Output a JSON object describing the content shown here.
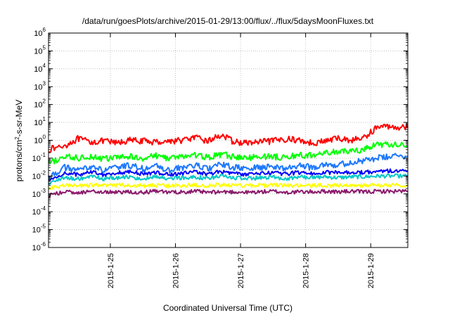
{
  "chart_data": {
    "type": "line",
    "title": "/data/run/goesPlots/archive/2015-01-29/13:00/flux/../flux/5daysMoonFluxes.txt",
    "xlabel": "Coordinated Universal Time (UTC)",
    "ylabel": {
      "base": "protons/cm",
      "sup": "2",
      "rest": "-s-sr-MeV"
    },
    "yscale": "log",
    "ylim_exp": [
      -6,
      6
    ],
    "y_tick_labels": [
      {
        "exp": -6,
        "base": "10",
        "sup": "-6"
      },
      {
        "exp": -5,
        "base": "10",
        "sup": "-5"
      },
      {
        "exp": -4,
        "base": "10",
        "sup": "-4"
      },
      {
        "exp": -3,
        "base": "10",
        "sup": "-3"
      },
      {
        "exp": -2,
        "base": "10",
        "sup": "-2"
      },
      {
        "exp": -1,
        "base": "10",
        "sup": "-1"
      },
      {
        "exp": 0,
        "base": "10",
        "sup": "0"
      },
      {
        "exp": 1,
        "base": "10",
        "sup": "1"
      },
      {
        "exp": 2,
        "base": "10",
        "sup": "2"
      },
      {
        "exp": 3,
        "base": "10",
        "sup": "3"
      },
      {
        "exp": 4,
        "base": "10",
        "sup": "4"
      },
      {
        "exp": 5,
        "base": "10",
        "sup": "5"
      },
      {
        "exp": 6,
        "base": "10",
        "sup": "6"
      }
    ],
    "xlim_days": [
      24.05,
      29.57
    ],
    "x_ticks": [
      {
        "day": 25,
        "label": "2015-1-25"
      },
      {
        "day": 26,
        "label": "2015-1-26"
      },
      {
        "day": 27,
        "label": "2015-1-27"
      },
      {
        "day": 28,
        "label": "2015-1-28"
      },
      {
        "day": 29,
        "label": "2015-1-29"
      }
    ],
    "grid": true,
    "legend": "none",
    "series": [
      {
        "color": "#ff0000",
        "x": [
          24.05,
          24.3,
          24.5,
          24.7,
          24.9,
          25.1,
          25.3,
          25.5,
          25.7,
          25.9,
          26.1,
          26.3,
          26.5,
          26.7,
          26.9,
          27.1,
          27.3,
          27.5,
          27.7,
          27.9,
          28.1,
          28.3,
          28.5,
          28.7,
          28.9,
          29.1,
          29.3,
          29.57
        ],
        "values": [
          0.3,
          0.5,
          1.2,
          0.8,
          0.9,
          0.7,
          1.0,
          0.9,
          0.8,
          0.9,
          1.0,
          1.4,
          0.9,
          2.0,
          0.8,
          0.7,
          0.8,
          0.9,
          1.2,
          1.0,
          0.7,
          0.9,
          1.3,
          1.0,
          1.4,
          5.5,
          6.0,
          5.0
        ]
      },
      {
        "color": "#00ff00",
        "x": [
          24.05,
          24.3,
          24.5,
          24.7,
          24.9,
          25.1,
          25.3,
          25.5,
          25.7,
          25.9,
          26.1,
          26.3,
          26.5,
          26.7,
          26.9,
          27.1,
          27.3,
          27.5,
          27.7,
          27.9,
          28.1,
          28.3,
          28.5,
          28.7,
          28.9,
          29.1,
          29.3,
          29.57
        ],
        "values": [
          0.05,
          0.12,
          0.1,
          0.13,
          0.09,
          0.11,
          0.12,
          0.1,
          0.14,
          0.1,
          0.12,
          0.15,
          0.11,
          0.16,
          0.12,
          0.1,
          0.13,
          0.12,
          0.11,
          0.15,
          0.14,
          0.2,
          0.22,
          0.25,
          0.3,
          0.6,
          0.55,
          0.5
        ]
      },
      {
        "color": "#1e78ff",
        "x": [
          24.05,
          24.3,
          24.5,
          24.7,
          24.9,
          25.1,
          25.3,
          25.5,
          25.7,
          25.9,
          26.1,
          26.3,
          26.5,
          26.7,
          26.9,
          27.1,
          27.3,
          27.5,
          27.7,
          27.9,
          28.1,
          28.3,
          28.5,
          28.7,
          28.9,
          29.1,
          29.3,
          29.57
        ],
        "values": [
          0.008,
          0.03,
          0.02,
          0.035,
          0.02,
          0.03,
          0.04,
          0.025,
          0.035,
          0.02,
          0.03,
          0.04,
          0.025,
          0.045,
          0.03,
          0.025,
          0.03,
          0.035,
          0.025,
          0.04,
          0.03,
          0.05,
          0.04,
          0.06,
          0.07,
          0.1,
          0.12,
          0.13
        ]
      },
      {
        "color": "#0000ff",
        "x": [
          24.05,
          24.3,
          24.5,
          24.7,
          24.9,
          25.1,
          25.3,
          25.5,
          25.7,
          25.9,
          26.1,
          26.3,
          26.5,
          26.7,
          26.9,
          27.1,
          27.3,
          27.5,
          27.7,
          27.9,
          28.1,
          28.3,
          28.5,
          28.7,
          28.9,
          29.1,
          29.3,
          29.57
        ],
        "values": [
          0.005,
          0.015,
          0.012,
          0.018,
          0.012,
          0.015,
          0.017,
          0.013,
          0.016,
          0.012,
          0.014,
          0.017,
          0.013,
          0.018,
          0.014,
          0.012,
          0.014,
          0.015,
          0.013,
          0.016,
          0.014,
          0.016,
          0.015,
          0.017,
          0.016,
          0.018,
          0.02,
          0.019
        ]
      },
      {
        "color": "#00c8c8",
        "x": [
          24.05,
          24.3,
          24.5,
          24.7,
          24.9,
          25.1,
          25.3,
          25.5,
          25.7,
          25.9,
          26.1,
          26.3,
          26.5,
          26.7,
          26.9,
          27.1,
          27.3,
          27.5,
          27.7,
          27.9,
          28.1,
          28.3,
          28.5,
          28.7,
          28.9,
          29.1,
          29.3,
          29.57
        ],
        "values": [
          0.004,
          0.008,
          0.007,
          0.009,
          0.007,
          0.008,
          0.009,
          0.007,
          0.009,
          0.007,
          0.008,
          0.009,
          0.007,
          0.01,
          0.008,
          0.007,
          0.008,
          0.009,
          0.007,
          0.009,
          0.008,
          0.009,
          0.008,
          0.009,
          0.009,
          0.01,
          0.01,
          0.01
        ]
      },
      {
        "color": "#ffff00",
        "x": [
          24.05,
          24.3,
          24.5,
          24.7,
          24.9,
          25.1,
          25.3,
          25.5,
          25.7,
          25.9,
          26.1,
          26.3,
          26.5,
          26.7,
          26.9,
          27.1,
          27.3,
          27.5,
          27.7,
          27.9,
          28.1,
          28.3,
          28.5,
          28.7,
          28.9,
          29.1,
          29.3,
          29.57
        ],
        "values": [
          0.002,
          0.003,
          0.0028,
          0.0031,
          0.0029,
          0.003,
          0.0031,
          0.0029,
          0.003,
          0.0028,
          0.003,
          0.0031,
          0.0029,
          0.0032,
          0.003,
          0.0029,
          0.003,
          0.0031,
          0.0029,
          0.003,
          0.0029,
          0.003,
          0.0029,
          0.003,
          0.003,
          0.0031,
          0.003,
          0.003
        ]
      },
      {
        "color": "#8b1a6b",
        "x": [
          24.05,
          24.3,
          24.5,
          24.7,
          24.9,
          25.1,
          25.3,
          25.5,
          25.7,
          25.9,
          26.1,
          26.3,
          26.5,
          26.7,
          26.9,
          27.1,
          27.3,
          27.5,
          27.7,
          27.9,
          28.1,
          28.3,
          28.5,
          28.7,
          28.9,
          29.1,
          29.3,
          29.57
        ],
        "values": [
          0.0008,
          0.0013,
          0.0012,
          0.0014,
          0.0012,
          0.0013,
          0.0013,
          0.0012,
          0.0014,
          0.0012,
          0.0013,
          0.0014,
          0.0012,
          0.0013,
          0.0013,
          0.0012,
          0.0013,
          0.0014,
          0.0012,
          0.0013,
          0.0013,
          0.0014,
          0.0013,
          0.0014,
          0.0013,
          0.0014,
          0.0014,
          0.0014
        ]
      }
    ]
  }
}
